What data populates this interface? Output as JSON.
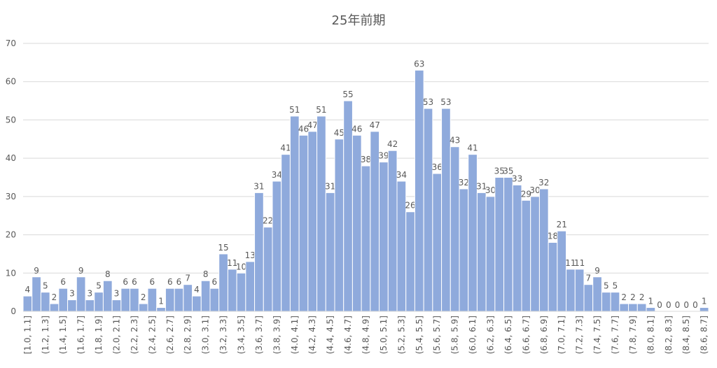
{
  "chart_data": {
    "type": "bar",
    "title": "25年前期",
    "categories": [
      "[1.0, 1.1]",
      null,
      "(1.2, 1.3]",
      null,
      "(1.4, 1.5]",
      null,
      "(1.6, 1.7]",
      null,
      "(1.8, 1.9]",
      null,
      "(2.0, 2.1]",
      null,
      "(2.2, 2.3]",
      null,
      "(2.4, 2.5]",
      null,
      "(2.6, 2.7]",
      null,
      "(2.8, 2.9]",
      null,
      "(3.0, 3.1]",
      null,
      "(3.2, 3.3]",
      null,
      "(3.4, 3.5]",
      null,
      "(3.6, 3.7]",
      null,
      "(3.8, 3.9]",
      null,
      "(4.0, 4.1]",
      null,
      "(4.2, 4.3]",
      null,
      "(4.4, 4.5]",
      null,
      "(4.6, 4.7]",
      null,
      "(4.8, 4.9]",
      null,
      "(5.0, 5.1]",
      null,
      "(5.2, 5.3]",
      null,
      "(5.4, 5.5]",
      null,
      "(5.6, 5.7]",
      null,
      "(5.8, 5.9]",
      null,
      "(6.0, 6.1]",
      null,
      "(6.2, 6.3]",
      null,
      "(6.4, 6.5]",
      null,
      "(6.6, 6.7]",
      null,
      "(6.8, 6.9]",
      null,
      "(7.0, 7.1]",
      null,
      "(7.2, 7.3]",
      null,
      "(7.4, 7.5]",
      null,
      "(7.6, 7.7]",
      null,
      "(7.8, 7.9]",
      null,
      "(8.0, 8.1]",
      null,
      "(8.2, 8.3]",
      null,
      "(8.4, 8.5]",
      null,
      "(8.6, 8.7]"
    ],
    "values": [
      4,
      9,
      5,
      2,
      6,
      3,
      9,
      3,
      5,
      8,
      3,
      6,
      6,
      2,
      6,
      1,
      6,
      6,
      7,
      4,
      8,
      6,
      15,
      11,
      10,
      13,
      31,
      22,
      34,
      41,
      51,
      46,
      47,
      51,
      31,
      45,
      55,
      46,
      38,
      47,
      39,
      42,
      34,
      26,
      63,
      53,
      36,
      53,
      43,
      32,
      41,
      31,
      30,
      35,
      35,
      33,
      29,
      30,
      32,
      18,
      21,
      11,
      11,
      7,
      9,
      5,
      5,
      2,
      2,
      2,
      1,
      0,
      0,
      0,
      0,
      0,
      1
    ],
    "color": "#8faadc",
    "ylim": [
      0,
      70
    ],
    "yticks": [
      0,
      10,
      20,
      30,
      40,
      50,
      60,
      70
    ],
    "grid": true
  }
}
